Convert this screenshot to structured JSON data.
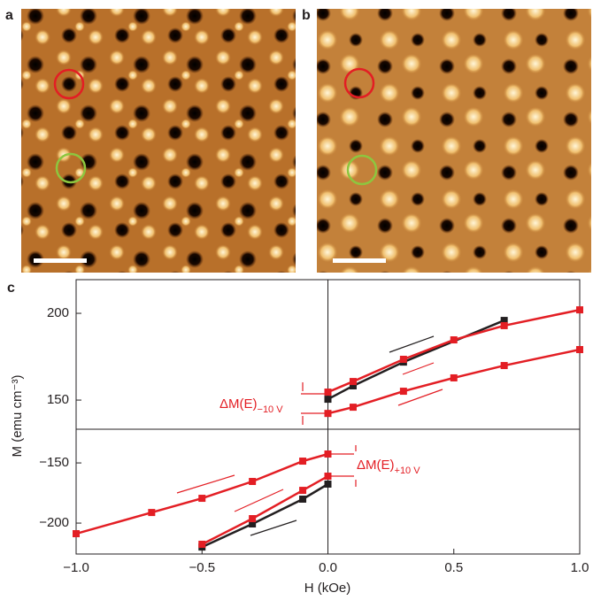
{
  "panel_labels": [
    "a",
    "b",
    "c"
  ],
  "chart_data": {
    "type": "line",
    "x_label": "H (kOe)",
    "y_label": "M (emu cm⁻³)",
    "xlim": [
      -1.0,
      1.0
    ],
    "xticks": [
      {
        "value": -1.0,
        "label": "−1.0"
      },
      {
        "value": -0.5,
        "label": "−0.5"
      },
      {
        "value": 0,
        "label": "0.0"
      },
      {
        "value": 0.5,
        "label": "0.5"
      },
      {
        "value": 1.0,
        "label": "1.0"
      }
    ],
    "panels": [
      {
        "ylim": [
          133.2,
          219.4
        ],
        "yticks": [
          150,
          200
        ],
        "series": [
          {
            "color": "#231f20",
            "x": [
              0,
              0.1,
              0.3,
              0.7
            ],
            "values": [
              150.5,
              158.2,
              171.9,
              195.9
            ]
          },
          {
            "color": "#e31e24",
            "x": [
              0,
              0.1,
              0.3,
              0.5,
              0.7,
              1.0
            ],
            "values": [
              154.6,
              160.7,
              173.5,
              184.7,
              192.9,
              202
            ]
          },
          {
            "color": "#e31e24",
            "x": [
              0,
              0.1,
              0.3,
              0.5,
              0.7,
              1.0
            ],
            "values": [
              142.3,
              145.9,
              155.1,
              162.8,
              169.9,
              179.1
            ]
          }
        ]
      },
      {
        "ylim": [
          -225.7,
          -122
        ],
        "yticks": [
          {
            "value": -150,
            "label": "−150"
          },
          {
            "value": -200,
            "label": "−200"
          }
        ],
        "series": [
          {
            "color": "#e31e24",
            "x": [
              -1.0,
              -0.7,
              -0.5,
              -0.3,
              -0.1,
              0
            ],
            "values": [
              -208.8,
              -191.2,
              -179.4,
              -165.4,
              -148.5,
              -142.6
            ]
          },
          {
            "color": "#231f20",
            "x": [
              -0.5,
              -0.3,
              -0.1,
              0
            ],
            "values": [
              -219.9,
              -200.7,
              -180.1,
              -167.6
            ]
          },
          {
            "color": "#e31e24",
            "x": [
              -0.5,
              -0.3,
              -0.1,
              0
            ],
            "values": [
              -217.6,
              -196.3,
              -172.8,
              -161
            ]
          }
        ]
      }
    ],
    "annotations": [
      {
        "text": "ΔM(E)",
        "sub": "−10 V"
      },
      {
        "text": "ΔM(E)",
        "sub": "+10 V"
      }
    ]
  }
}
